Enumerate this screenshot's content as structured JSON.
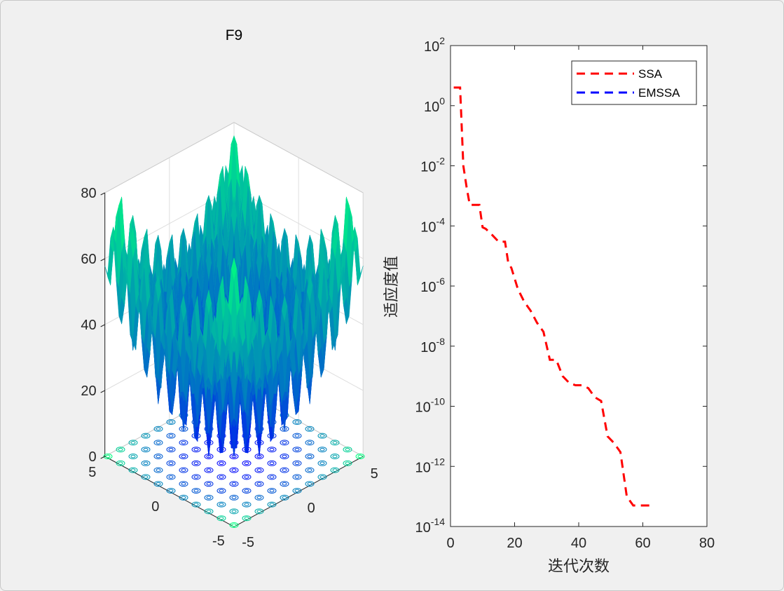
{
  "chart_data": [
    {
      "type": "surface",
      "title": "F9",
      "zticks": [
        "0",
        "20",
        "40",
        "60",
        "80"
      ],
      "zlim": [
        0,
        80
      ],
      "xticks": [
        "-5",
        "0",
        "5"
      ],
      "yticks": [
        "-5",
        "0",
        "5"
      ],
      "xlim": [
        -5.12,
        5.12
      ],
      "ylim": [
        -5.12,
        5.12
      ],
      "function": "Rastrigin: 10*2 + sum(x_i^2 - 10*cos(2*pi*x_i))",
      "colormap": "winter",
      "contour_on_floor": true,
      "grid": true
    },
    {
      "type": "line",
      "title": "",
      "xlabel": "迭代次数",
      "ylabel": "适应度值",
      "xlim": [
        0,
        80
      ],
      "ylim": [
        1e-14,
        100
      ],
      "yscale": "log",
      "xtick_labels": [
        "0",
        "20",
        "40",
        "60",
        "80"
      ],
      "ytick_labels": [
        {
          "base": "10",
          "exp": "2"
        },
        {
          "base": "10",
          "exp": "0"
        },
        {
          "base": "10",
          "exp": "-2"
        },
        {
          "base": "10",
          "exp": "-4"
        },
        {
          "base": "10",
          "exp": "-6"
        },
        {
          "base": "10",
          "exp": "-8"
        },
        {
          "base": "10",
          "exp": "-10"
        },
        {
          "base": "10",
          "exp": "-12"
        },
        {
          "base": "10",
          "exp": "-14"
        }
      ],
      "legend_position": "top-right",
      "series": [
        {
          "name": "SSA",
          "color": "#ff0000",
          "style": "dashed",
          "x": [
            1,
            3,
            3.5,
            4,
            5,
            6,
            7,
            9,
            10,
            11,
            13,
            15,
            17,
            18,
            19,
            21,
            23,
            25,
            27,
            29,
            31,
            33,
            35,
            37,
            39,
            41,
            43,
            45,
            47,
            49,
            51,
            53,
            55,
            57,
            59,
            61,
            63
          ],
          "y": [
            4.0,
            4.0,
            0.2,
            0.01,
            0.002,
            0.0005,
            0.0005,
            0.0005,
            9e-05,
            8e-05,
            5e-05,
            3e-05,
            3e-05,
            6e-06,
            4e-06,
            8e-07,
            3e-07,
            1.5e-07,
            6e-08,
            3e-08,
            3.5e-09,
            3.5e-09,
            1e-09,
            6e-10,
            5e-10,
            5e-10,
            4e-10,
            2e-10,
            1.5e-10,
            1e-11,
            6e-12,
            3e-12,
            1e-13,
            5e-14,
            5e-14,
            5e-14,
            5e-14
          ]
        },
        {
          "name": "EMSSA",
          "color": "#0000ff",
          "style": "dashed",
          "x": [],
          "y": []
        }
      ]
    }
  ]
}
